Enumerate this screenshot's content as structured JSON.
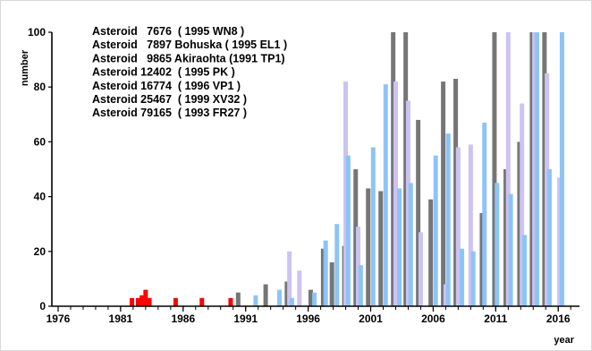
{
  "chart_data": {
    "type": "bar",
    "xlabel": "year",
    "ylabel": "number",
    "xlim": [
      1975.5,
      2017.7
    ],
    "ylim": [
      0,
      100
    ],
    "x_ticks": [
      "1976",
      "1981",
      "1986",
      "1991",
      "1996",
      "2001",
      "2006",
      "2011",
      "2016"
    ],
    "y_ticks": [
      "0",
      "20",
      "40",
      "60",
      "80",
      "100"
    ],
    "legend_lines": [
      "Asteroid   7676  ( 1995 WN8 )",
      "Asteroid   7897 Bohuska ( 1995 EL1 )",
      "Asteroid   9865 Akiraohta (1991 TP1)",
      "Asteroid 12402  ( 1995 PK )",
      "Asteroid 16774  ( 1996 VP1 )",
      "Asteroid 25467  ( 1999 XV32 )",
      "Asteroid 79165  ( 1993 FR27 )"
    ],
    "colors": {
      "early": "#ff0000",
      "dark": "#767676",
      "lavender": "#ccc3f2",
      "blue": "#8dc4f6"
    },
    "bars": [
      {
        "x": 1981.9,
        "y": 3,
        "c": "early"
      },
      {
        "x": 1982.4,
        "y": 3,
        "c": "early"
      },
      {
        "x": 1982.7,
        "y": 4,
        "c": "early"
      },
      {
        "x": 1983.0,
        "y": 6,
        "c": "early"
      },
      {
        "x": 1983.3,
        "y": 3,
        "c": "early"
      },
      {
        "x": 1985.4,
        "y": 3,
        "c": "early"
      },
      {
        "x": 1987.5,
        "y": 3,
        "c": "early"
      },
      {
        "x": 1989.8,
        "y": 3,
        "c": "early"
      },
      {
        "x": 1990.4,
        "y": 5,
        "c": "dark"
      },
      {
        "x": 1991.8,
        "y": 4,
        "c": "blue"
      },
      {
        "x": 1992.6,
        "y": 8,
        "c": "dark"
      },
      {
        "x": 1993.7,
        "y": 6,
        "c": "blue"
      },
      {
        "x": 1994.3,
        "y": 9,
        "c": "dark"
      },
      {
        "x": 1994.5,
        "y": 20,
        "c": "lavender"
      },
      {
        "x": 1994.7,
        "y": 3,
        "c": "blue"
      },
      {
        "x": 1995.3,
        "y": 13,
        "c": "lavender"
      },
      {
        "x": 1996.2,
        "y": 6,
        "c": "dark"
      },
      {
        "x": 1996.5,
        "y": 5,
        "c": "blue"
      },
      {
        "x": 1997.2,
        "y": 21,
        "c": "dark"
      },
      {
        "x": 1997.4,
        "y": 24,
        "c": "blue"
      },
      {
        "x": 1997.9,
        "y": 16,
        "c": "dark"
      },
      {
        "x": 1998.3,
        "y": 30,
        "c": "blue"
      },
      {
        "x": 1998.9,
        "y": 22,
        "c": "dark"
      },
      {
        "x": 1999.0,
        "y": 82,
        "c": "lavender"
      },
      {
        "x": 1999.2,
        "y": 55,
        "c": "blue"
      },
      {
        "x": 1999.8,
        "y": 50,
        "c": "dark"
      },
      {
        "x": 2000.0,
        "y": 29,
        "c": "lavender"
      },
      {
        "x": 2000.2,
        "y": 15,
        "c": "blue"
      },
      {
        "x": 2000.8,
        "y": 43,
        "c": "dark"
      },
      {
        "x": 2001.2,
        "y": 58,
        "c": "blue"
      },
      {
        "x": 2001.8,
        "y": 42,
        "c": "dark"
      },
      {
        "x": 2002.2,
        "y": 81,
        "c": "blue"
      },
      {
        "x": 2002.8,
        "y": 100,
        "c": "dark"
      },
      {
        "x": 2003.0,
        "y": 82,
        "c": "lavender"
      },
      {
        "x": 2003.3,
        "y": 43,
        "c": "blue"
      },
      {
        "x": 2003.8,
        "y": 100,
        "c": "dark"
      },
      {
        "x": 2004.0,
        "y": 75,
        "c": "lavender"
      },
      {
        "x": 2004.2,
        "y": 45,
        "c": "blue"
      },
      {
        "x": 2004.8,
        "y": 68,
        "c": "dark"
      },
      {
        "x": 2005.0,
        "y": 27,
        "c": "lavender"
      },
      {
        "x": 2005.8,
        "y": 39,
        "c": "dark"
      },
      {
        "x": 2006.2,
        "y": 55,
        "c": "blue"
      },
      {
        "x": 2006.8,
        "y": 82,
        "c": "dark"
      },
      {
        "x": 2007.0,
        "y": 8,
        "c": "lavender"
      },
      {
        "x": 2007.2,
        "y": 63,
        "c": "blue"
      },
      {
        "x": 2007.8,
        "y": 83,
        "c": "dark"
      },
      {
        "x": 2008.0,
        "y": 58,
        "c": "lavender"
      },
      {
        "x": 2008.3,
        "y": 21,
        "c": "blue"
      },
      {
        "x": 2009.0,
        "y": 59,
        "c": "lavender"
      },
      {
        "x": 2009.2,
        "y": 20,
        "c": "blue"
      },
      {
        "x": 2009.9,
        "y": 34,
        "c": "dark"
      },
      {
        "x": 2010.1,
        "y": 67,
        "c": "blue"
      },
      {
        "x": 2010.9,
        "y": 100,
        "c": "dark"
      },
      {
        "x": 2011.1,
        "y": 45,
        "c": "blue"
      },
      {
        "x": 2011.8,
        "y": 50,
        "c": "dark"
      },
      {
        "x": 2012.0,
        "y": 100,
        "c": "lavender"
      },
      {
        "x": 2012.2,
        "y": 41,
        "c": "blue"
      },
      {
        "x": 2012.9,
        "y": 60,
        "c": "dark"
      },
      {
        "x": 2013.1,
        "y": 74,
        "c": "lavender"
      },
      {
        "x": 2013.3,
        "y": 26,
        "c": "blue"
      },
      {
        "x": 2013.9,
        "y": 100,
        "c": "dark"
      },
      {
        "x": 2014.1,
        "y": 100,
        "c": "lavender"
      },
      {
        "x": 2014.3,
        "y": 100,
        "c": "blue"
      },
      {
        "x": 2014.9,
        "y": 100,
        "c": "dark"
      },
      {
        "x": 2015.1,
        "y": 85,
        "c": "lavender"
      },
      {
        "x": 2015.3,
        "y": 50,
        "c": "blue"
      },
      {
        "x": 2016.1,
        "y": 47,
        "c": "lavender"
      },
      {
        "x": 2016.3,
        "y": 100,
        "c": "blue"
      }
    ]
  }
}
